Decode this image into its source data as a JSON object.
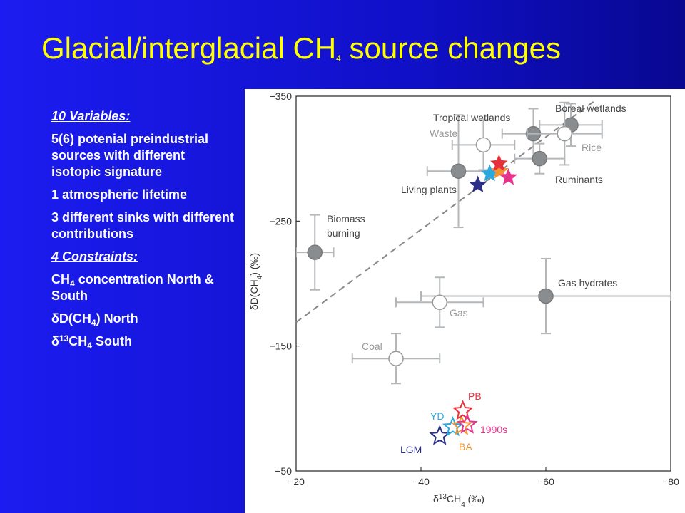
{
  "title": [
    {
      "t": "Glacial/interglacial CH"
    },
    {
      "sub": "4"
    },
    {
      "t": " source changes"
    }
  ],
  "left_text": [
    {
      "style": "head",
      "segments": [
        {
          "t": "10 Variables:"
        }
      ]
    },
    {
      "segments": [
        {
          "t": "5(6) potenial preindustrial sources with different isotopic signature"
        }
      ]
    },
    {
      "segments": [
        {
          "t": "1 atmospheric lifetime"
        }
      ]
    },
    {
      "segments": [
        {
          "t": "3 different sinks with different contributions"
        }
      ]
    },
    {
      "style": "head",
      "segments": [
        {
          "t": "4 Constraints:"
        }
      ]
    },
    {
      "segments": [
        {
          "t": "CH"
        },
        {
          "sub": "4"
        },
        {
          "t": " concentration North & South"
        }
      ]
    },
    {
      "segments": [
        {
          "t": "δD(CH"
        },
        {
          "sub": "4"
        },
        {
          "t": ") North"
        }
      ]
    },
    {
      "segments": [
        {
          "t": "δ"
        },
        {
          "sup": "13"
        },
        {
          "t": "CH"
        },
        {
          "sub": "4"
        },
        {
          "t": " South"
        }
      ]
    }
  ],
  "chart_data": {
    "type": "scatter",
    "x_label": [
      {
        "t": "δ"
      },
      {
        "sup": "13"
      },
      {
        "t": "CH"
      },
      {
        "sub": "4"
      },
      {
        "t": " (‰)"
      }
    ],
    "y_label": [
      {
        "t": "δD(CH"
      },
      {
        "sub": "4"
      },
      {
        "t": ") (‰)"
      }
    ],
    "xlim": [
      -20,
      -80
    ],
    "ylim": [
      -50,
      -350
    ],
    "xticks": [
      {
        "value": -20,
        "label": "−20"
      },
      {
        "value": -40,
        "label": "−40"
      },
      {
        "value": -60,
        "label": "−60"
      },
      {
        "value": -80,
        "label": "−80"
      }
    ],
    "yticks": [
      {
        "value": -350,
        "label": "−350"
      },
      {
        "value": -250,
        "label": "−250"
      },
      {
        "value": -150,
        "label": "−150"
      },
      {
        "value": -50,
        "label": "−50"
      }
    ],
    "dashed_line": {
      "x": [
        -20,
        -68
      ],
      "y": [
        -169,
        -347
      ]
    },
    "sources": [
      {
        "label_lines": [
          "Tropical wetlands"
        ],
        "filled": true,
        "x": -58,
        "y": -320,
        "x_err": 5,
        "y_err": 20
      },
      {
        "label_lines": [
          "Boreal wetlands"
        ],
        "filled": true,
        "x": -64,
        "y": -327,
        "x_err": 5,
        "y_err": 17
      },
      {
        "label_lines": [
          "Waste"
        ],
        "filled": false,
        "x": -50,
        "y": -311,
        "x_err": 5,
        "y_err": 20
      },
      {
        "label_lines": [
          "Rice"
        ],
        "filled": false,
        "x": -63,
        "y": -320,
        "x_err": 6,
        "y_err": 25
      },
      {
        "label_lines": [
          "Ruminants"
        ],
        "filled": true,
        "x": -59,
        "y": -300,
        "x_err": 4,
        "y_err": 12
      },
      {
        "label_lines": [
          "Living plants"
        ],
        "filled": true,
        "x": -46,
        "y": -290,
        "x_err": 5,
        "y_err": 45
      },
      {
        "label_lines": [
          "Biomass",
          "burning"
        ],
        "filled": true,
        "x": -23,
        "y": -225,
        "x_err": 3,
        "y_err": 30
      },
      {
        "label_lines": [
          "Gas hydrates"
        ],
        "filled": true,
        "x": -60,
        "y": -190,
        "x_err": 20,
        "y_err": 30
      },
      {
        "label_lines": [
          "Gas"
        ],
        "filled": false,
        "x": -43,
        "y": -185,
        "x_err": 7,
        "y_err": 20
      },
      {
        "label_lines": [
          "Coal"
        ],
        "filled": false,
        "x": -36,
        "y": -140,
        "x_err": 7,
        "y_err": 20
      }
    ],
    "series": [
      {
        "name": "LGM",
        "color": "#2b2f86",
        "model": {
          "x": -49.1,
          "y": -279
        },
        "data": {
          "x": -43,
          "y": -78
        }
      },
      {
        "name": "YD",
        "color": "#29a9e0",
        "model": {
          "x": -51,
          "y": -288
        },
        "data": {
          "x": -45.1,
          "y": -85
        }
      },
      {
        "name": "BA",
        "color": "#f39432",
        "model": {
          "x": -52.6,
          "y": -290
        },
        "data": {
          "x": -46.5,
          "y": -86
        }
      },
      {
        "name": "PB",
        "color": "#e8303a",
        "model": {
          "x": -52.5,
          "y": -296
        },
        "data": {
          "x": -46.7,
          "y": -98
        }
      },
      {
        "name": "1990s",
        "color": "#e6348c",
        "model": {
          "x": -54,
          "y": -285
        },
        "data": {
          "x": -47.4,
          "y": -87
        }
      }
    ]
  }
}
